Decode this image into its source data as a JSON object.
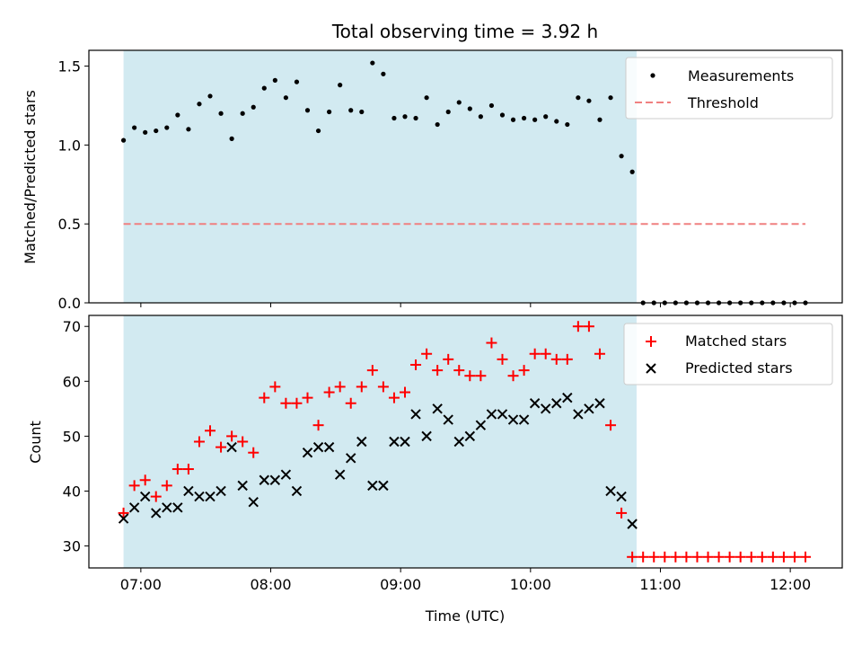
{
  "figure": {
    "title": "Total observing time = 3.92 h",
    "shade_color": "#add8e6",
    "shade_range": [
      "06:52",
      "10:49"
    ]
  },
  "chart_data": [
    {
      "type": "scatter",
      "title": "Total observing time = 3.92 h",
      "xlabel": "",
      "ylabel": "Matched/Predicted stars",
      "xlim": [
        "06:36",
        "12:24"
      ],
      "ylim": [
        0,
        1.6
      ],
      "x_ticks": [
        "07:00",
        "08:00",
        "09:00",
        "10:00",
        "11:00",
        "12:00"
      ],
      "y_ticks": [
        "0.0",
        "0.5",
        "1.0",
        "1.5"
      ],
      "legend_position": "top-right",
      "grid": false,
      "series": [
        {
          "name": "Measurements",
          "marker": "dot",
          "color": "#000000",
          "x": [
            "06:52",
            "06:57",
            "07:02",
            "07:07",
            "07:12",
            "07:17",
            "07:22",
            "07:27",
            "07:32",
            "07:37",
            "07:42",
            "07:47",
            "07:52",
            "07:57",
            "08:02",
            "08:07",
            "08:12",
            "08:17",
            "08:22",
            "08:27",
            "08:32",
            "08:37",
            "08:42",
            "08:47",
            "08:52",
            "08:57",
            "09:02",
            "09:07",
            "09:12",
            "09:17",
            "09:22",
            "09:27",
            "09:32",
            "09:37",
            "09:42",
            "09:47",
            "09:52",
            "09:57",
            "10:02",
            "10:07",
            "10:12",
            "10:17",
            "10:22",
            "10:27",
            "10:32",
            "10:37",
            "10:42",
            "10:47",
            "10:52",
            "10:57",
            "11:02",
            "11:07",
            "11:12",
            "11:17",
            "11:22",
            "11:27",
            "11:32",
            "11:37",
            "11:42",
            "11:47",
            "11:52",
            "11:57",
            "12:02",
            "12:07"
          ],
          "y": [
            1.03,
            1.11,
            1.08,
            1.09,
            1.11,
            1.19,
            1.1,
            1.26,
            1.31,
            1.2,
            1.04,
            1.2,
            1.24,
            1.36,
            1.41,
            1.3,
            1.4,
            1.22,
            1.09,
            1.21,
            1.38,
            1.22,
            1.21,
            1.52,
            1.45,
            1.17,
            1.18,
            1.17,
            1.3,
            1.13,
            1.21,
            1.27,
            1.23,
            1.18,
            1.25,
            1.19,
            1.16,
            1.17,
            1.16,
            1.18,
            1.15,
            1.13,
            1.3,
            1.28,
            1.16,
            1.3,
            0.93,
            0.83,
            0,
            0,
            0,
            0,
            0,
            0,
            0,
            0,
            0,
            0,
            0,
            0,
            0,
            0,
            0,
            0
          ]
        },
        {
          "name": "Threshold",
          "line_style": "dashed",
          "color": "#f08080",
          "x": [
            "06:52",
            "12:07"
          ],
          "y": [
            0.5,
            0.5
          ]
        }
      ]
    },
    {
      "type": "scatter",
      "title": "",
      "xlabel": "Time (UTC)",
      "ylabel": "Count",
      "xlim": [
        "06:36",
        "12:24"
      ],
      "ylim": [
        26,
        72
      ],
      "x_ticks": [
        "07:00",
        "08:00",
        "09:00",
        "10:00",
        "11:00",
        "12:00"
      ],
      "y_ticks": [
        "30",
        "40",
        "50",
        "60",
        "70"
      ],
      "legend_position": "top-right",
      "grid": false,
      "series": [
        {
          "name": "Matched stars",
          "marker": "plus",
          "color": "#ff0000",
          "x": [
            "06:52",
            "06:57",
            "07:02",
            "07:07",
            "07:12",
            "07:17",
            "07:22",
            "07:27",
            "07:32",
            "07:37",
            "07:42",
            "07:47",
            "07:52",
            "07:57",
            "08:02",
            "08:07",
            "08:12",
            "08:17",
            "08:22",
            "08:27",
            "08:32",
            "08:37",
            "08:42",
            "08:47",
            "08:52",
            "08:57",
            "09:02",
            "09:07",
            "09:12",
            "09:17",
            "09:22",
            "09:27",
            "09:32",
            "09:37",
            "09:42",
            "09:47",
            "09:52",
            "09:57",
            "10:02",
            "10:07",
            "10:12",
            "10:17",
            "10:22",
            "10:27",
            "10:32",
            "10:37",
            "10:42",
            "10:47",
            "10:52",
            "10:57",
            "11:02",
            "11:07",
            "11:12",
            "11:17",
            "11:22",
            "11:27",
            "11:32",
            "11:37",
            "11:42",
            "11:47",
            "11:52",
            "11:57",
            "12:02",
            "12:07"
          ],
          "y": [
            36,
            41,
            42,
            39,
            41,
            44,
            44,
            49,
            51,
            48,
            50,
            49,
            47,
            57,
            59,
            56,
            56,
            57,
            52,
            58,
            59,
            56,
            59,
            62,
            59,
            57,
            58,
            63,
            65,
            62,
            64,
            62,
            61,
            61,
            67,
            64,
            61,
            62,
            65,
            65,
            64,
            64,
            70,
            70,
            65,
            52,
            36,
            28,
            28,
            28,
            28,
            28,
            28,
            28,
            28,
            28,
            28,
            28,
            28,
            28,
            28,
            28,
            28,
            28
          ]
        },
        {
          "name": "Predicted stars",
          "marker": "x",
          "color": "#000000",
          "x": [
            "06:52",
            "06:57",
            "07:02",
            "07:07",
            "07:12",
            "07:17",
            "07:22",
            "07:27",
            "07:32",
            "07:37",
            "07:42",
            "07:47",
            "07:52",
            "07:57",
            "08:02",
            "08:07",
            "08:12",
            "08:17",
            "08:22",
            "08:27",
            "08:32",
            "08:37",
            "08:42",
            "08:47",
            "08:52",
            "08:57",
            "09:02",
            "09:07",
            "09:12",
            "09:17",
            "09:22",
            "09:27",
            "09:32",
            "09:37",
            "09:42",
            "09:47",
            "09:52",
            "09:57",
            "10:02",
            "10:07",
            "10:12",
            "10:17",
            "10:22",
            "10:27",
            "10:32",
            "10:37",
            "10:42",
            "10:47"
          ],
          "y": [
            35,
            37,
            39,
            36,
            37,
            37,
            40,
            39,
            39,
            40,
            48,
            41,
            38,
            42,
            42,
            43,
            40,
            47,
            48,
            48,
            43,
            46,
            49,
            41,
            41,
            49,
            49,
            54,
            50,
            55,
            53,
            49,
            50,
            52,
            54,
            54,
            53,
            53,
            56,
            55,
            56,
            57,
            54,
            55,
            56,
            40,
            39,
            34
          ]
        }
      ]
    }
  ]
}
